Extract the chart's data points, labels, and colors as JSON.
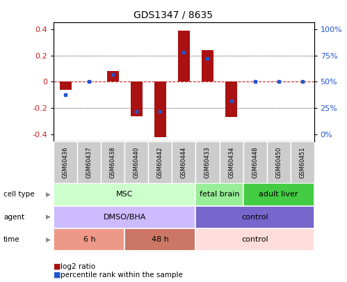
{
  "title": "GDS1347 / 8635",
  "samples": [
    "GSM60436",
    "GSM60437",
    "GSM60438",
    "GSM60440",
    "GSM60442",
    "GSM60444",
    "GSM60433",
    "GSM60434",
    "GSM60448",
    "GSM60450",
    "GSM60451"
  ],
  "log2_ratio": [
    -0.06,
    0.0,
    0.08,
    -0.26,
    -0.42,
    0.39,
    0.24,
    -0.27,
    0.0,
    0.0,
    0.0
  ],
  "percentile_rank": [
    38,
    50,
    57,
    22,
    22,
    78,
    72,
    32,
    50,
    50,
    50
  ],
  "ylim": [
    -0.45,
    0.45
  ],
  "yticks_left": [
    -0.4,
    -0.2,
    0.0,
    0.2,
    0.4
  ],
  "bar_color": "#aa1111",
  "dot_color": "#2255cc",
  "zero_line_color": "#cc2222",
  "cell_type_groups": [
    {
      "label": "MSC",
      "start": 0,
      "end": 5,
      "color": "#ccffcc"
    },
    {
      "label": "fetal brain",
      "start": 6,
      "end": 7,
      "color": "#99ee99"
    },
    {
      "label": "adult liver",
      "start": 8,
      "end": 10,
      "color": "#44cc44"
    }
  ],
  "agent_groups": [
    {
      "label": "DMSO/BHA",
      "start": 0,
      "end": 5,
      "color": "#ccbbff"
    },
    {
      "label": "control",
      "start": 6,
      "end": 10,
      "color": "#7766cc"
    }
  ],
  "time_groups": [
    {
      "label": "6 h",
      "start": 0,
      "end": 2,
      "color": "#ee9988"
    },
    {
      "label": "48 h",
      "start": 3,
      "end": 5,
      "color": "#cc7766"
    },
    {
      "label": "control",
      "start": 6,
      "end": 10,
      "color": "#ffdddd"
    }
  ],
  "row_labels": [
    "cell type",
    "agent",
    "time"
  ],
  "legend_items": [
    "log2 ratio",
    "percentile rank within the sample"
  ],
  "legend_colors": [
    "#aa1111",
    "#2255cc"
  ],
  "tick_label_color_left": "#cc2222",
  "tick_label_color_right": "#2255cc"
}
